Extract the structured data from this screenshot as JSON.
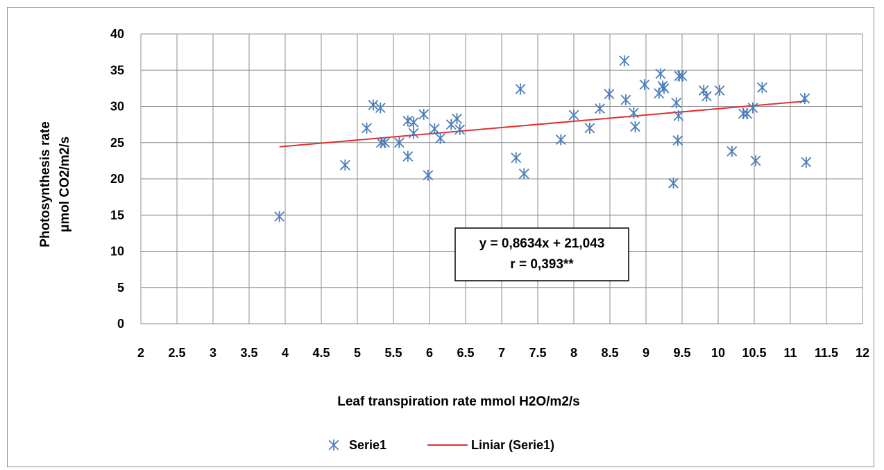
{
  "chart_data": {
    "type": "scatter",
    "xlabel": "Leaf transpiration rate mmol H2O/m2/s",
    "ylabel_lines": [
      "Photosynthesis rate",
      "μmol CO2/m2/s"
    ],
    "xlim": [
      2,
      12
    ],
    "ylim": [
      0,
      40
    ],
    "x_ticks": [
      "2",
      "2.5",
      "3",
      "3.5",
      "4",
      "4.5",
      "5",
      "5.5",
      "6",
      "6.5",
      "7",
      "7.5",
      "8",
      "8.5",
      "9",
      "9.5",
      "10",
      "10.5",
      "11",
      "11.5",
      "12"
    ],
    "y_ticks": [
      "0",
      "5",
      "10",
      "15",
      "20",
      "25",
      "30",
      "35",
      "40"
    ],
    "grid": true,
    "series": [
      {
        "name": "Serie1",
        "marker": "asterisk",
        "color": "#4a7ebb",
        "points": [
          [
            3.92,
            14.8
          ],
          [
            4.83,
            21.9
          ],
          [
            5.13,
            27.0
          ],
          [
            5.22,
            30.2
          ],
          [
            5.32,
            29.8
          ],
          [
            5.33,
            25.0
          ],
          [
            5.38,
            25.0
          ],
          [
            5.58,
            25.0
          ],
          [
            5.7,
            28.0
          ],
          [
            5.7,
            23.1
          ],
          [
            5.78,
            26.3
          ],
          [
            5.78,
            27.8
          ],
          [
            5.92,
            28.9
          ],
          [
            5.98,
            20.5
          ],
          [
            6.07,
            26.9
          ],
          [
            6.15,
            25.6
          ],
          [
            6.3,
            27.5
          ],
          [
            6.38,
            28.3
          ],
          [
            6.42,
            26.8
          ],
          [
            7.2,
            22.9
          ],
          [
            7.26,
            32.4
          ],
          [
            7.31,
            20.7
          ],
          [
            7.82,
            25.4
          ],
          [
            8.0,
            28.8
          ],
          [
            8.22,
            27.0
          ],
          [
            8.36,
            29.7
          ],
          [
            8.49,
            31.7
          ],
          [
            8.7,
            36.3
          ],
          [
            8.72,
            30.9
          ],
          [
            8.83,
            29.1
          ],
          [
            8.85,
            27.2
          ],
          [
            8.98,
            33.0
          ],
          [
            9.18,
            31.8
          ],
          [
            9.2,
            34.5
          ],
          [
            9.23,
            32.8
          ],
          [
            9.25,
            32.5
          ],
          [
            9.38,
            19.4
          ],
          [
            9.42,
            30.5
          ],
          [
            9.44,
            25.3
          ],
          [
            9.45,
            28.7
          ],
          [
            9.46,
            34.2
          ],
          [
            9.5,
            34.2
          ],
          [
            9.8,
            32.2
          ],
          [
            9.84,
            31.4
          ],
          [
            10.02,
            32.2
          ],
          [
            10.19,
            23.8
          ],
          [
            10.35,
            29.0
          ],
          [
            10.4,
            29.0
          ],
          [
            10.48,
            29.8
          ],
          [
            10.52,
            22.5
          ],
          [
            10.61,
            32.6
          ],
          [
            11.2,
            31.1
          ],
          [
            11.22,
            22.3
          ]
        ]
      }
    ],
    "trendline": {
      "name": "Liniar (Serie1)",
      "color": "#e03030",
      "slope": 0.8634,
      "intercept": 21.043,
      "x_range": [
        3.92,
        11.22
      ]
    },
    "annotation": {
      "line1": "y = 0,8634x + 21,043",
      "line2": "r = 0,393**"
    },
    "legend": {
      "position": "bottom",
      "marker_label": "Serie1",
      "line_label": "Liniar (Serie1)"
    }
  }
}
